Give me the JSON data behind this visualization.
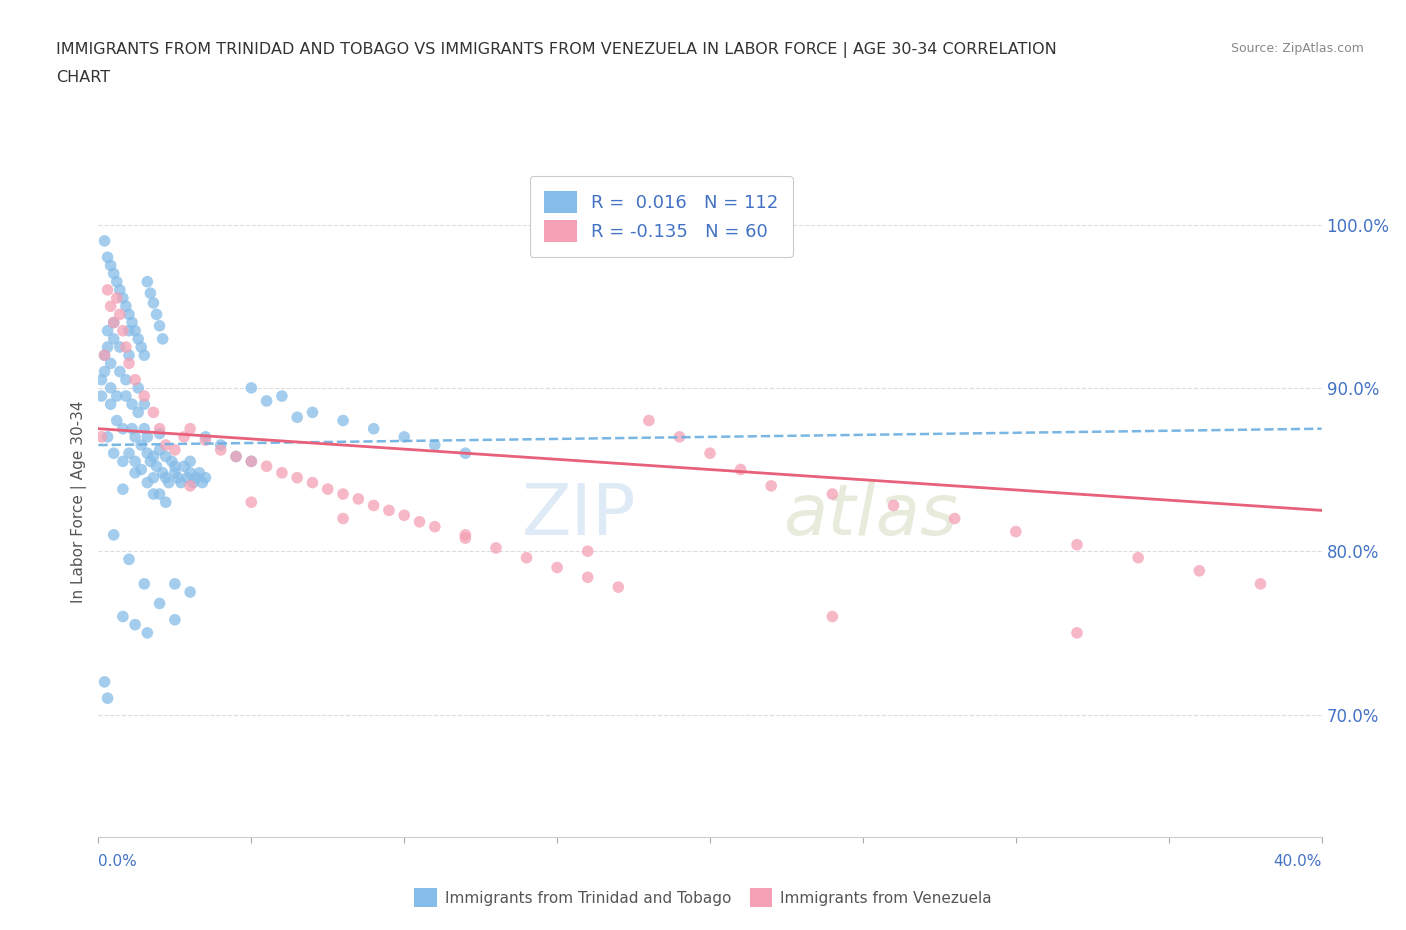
{
  "title_line1": "IMMIGRANTS FROM TRINIDAD AND TOBAGO VS IMMIGRANTS FROM VENEZUELA IN LABOR FORCE | AGE 30-34 CORRELATION",
  "title_line2": "CHART",
  "source_text": "Source: ZipAtlas.com",
  "ylabel_label": "In Labor Force | Age 30-34",
  "ytick_values": [
    0.7,
    0.8,
    0.9,
    1.0
  ],
  "xlim": [
    0.0,
    0.4
  ],
  "ylim": [
    0.625,
    1.035
  ],
  "color_tt": "#85BCE8",
  "color_ven": "#F4A0B5",
  "line_color_tt": "#6AAEE0",
  "line_color_ven": "#E8607A",
  "legend_r_tt": "0.016",
  "legend_n_tt": "112",
  "legend_r_ven": "-0.135",
  "legend_n_ven": "60",
  "watermark_zip": "ZIP",
  "watermark_atlas": "atlas",
  "tt_x": [
    0.001,
    0.001,
    0.002,
    0.002,
    0.003,
    0.003,
    0.003,
    0.004,
    0.004,
    0.004,
    0.005,
    0.005,
    0.005,
    0.006,
    0.006,
    0.007,
    0.007,
    0.008,
    0.008,
    0.009,
    0.009,
    0.01,
    0.01,
    0.01,
    0.011,
    0.011,
    0.012,
    0.012,
    0.013,
    0.013,
    0.014,
    0.014,
    0.015,
    0.015,
    0.016,
    0.016,
    0.017,
    0.018,
    0.018,
    0.019,
    0.02,
    0.02,
    0.021,
    0.022,
    0.022,
    0.023,
    0.024,
    0.025,
    0.025,
    0.026,
    0.027,
    0.028,
    0.029,
    0.03,
    0.03,
    0.031,
    0.032,
    0.033,
    0.034,
    0.035,
    0.002,
    0.003,
    0.004,
    0.005,
    0.006,
    0.007,
    0.008,
    0.009,
    0.01,
    0.011,
    0.012,
    0.013,
    0.014,
    0.015,
    0.016,
    0.017,
    0.018,
    0.019,
    0.02,
    0.021,
    0.005,
    0.01,
    0.015,
    0.02,
    0.025,
    0.008,
    0.012,
    0.016,
    0.002,
    0.003,
    0.05,
    0.06,
    0.07,
    0.08,
    0.09,
    0.1,
    0.11,
    0.12,
    0.055,
    0.065,
    0.025,
    0.03,
    0.022,
    0.018,
    0.035,
    0.04,
    0.045,
    0.05,
    0.012,
    0.016,
    0.008,
    0.02
  ],
  "tt_y": [
    0.895,
    0.905,
    0.91,
    0.92,
    0.925,
    0.935,
    0.87,
    0.89,
    0.9,
    0.915,
    0.93,
    0.94,
    0.86,
    0.88,
    0.895,
    0.91,
    0.925,
    0.855,
    0.875,
    0.895,
    0.905,
    0.92,
    0.935,
    0.86,
    0.875,
    0.89,
    0.855,
    0.87,
    0.885,
    0.9,
    0.85,
    0.865,
    0.875,
    0.89,
    0.86,
    0.87,
    0.855,
    0.845,
    0.858,
    0.852,
    0.862,
    0.872,
    0.848,
    0.845,
    0.858,
    0.842,
    0.855,
    0.852,
    0.848,
    0.845,
    0.842,
    0.852,
    0.845,
    0.848,
    0.855,
    0.842,
    0.845,
    0.848,
    0.842,
    0.845,
    0.99,
    0.98,
    0.975,
    0.97,
    0.965,
    0.96,
    0.955,
    0.95,
    0.945,
    0.94,
    0.935,
    0.93,
    0.925,
    0.92,
    0.965,
    0.958,
    0.952,
    0.945,
    0.938,
    0.93,
    0.81,
    0.795,
    0.78,
    0.768,
    0.758,
    0.76,
    0.755,
    0.75,
    0.72,
    0.71,
    0.9,
    0.895,
    0.885,
    0.88,
    0.875,
    0.87,
    0.865,
    0.86,
    0.892,
    0.882,
    0.78,
    0.775,
    0.83,
    0.835,
    0.87,
    0.865,
    0.858,
    0.855,
    0.848,
    0.842,
    0.838,
    0.835
  ],
  "ven_x": [
    0.001,
    0.002,
    0.003,
    0.004,
    0.005,
    0.006,
    0.007,
    0.008,
    0.009,
    0.01,
    0.012,
    0.015,
    0.018,
    0.02,
    0.022,
    0.025,
    0.028,
    0.03,
    0.035,
    0.04,
    0.045,
    0.05,
    0.055,
    0.06,
    0.065,
    0.07,
    0.075,
    0.08,
    0.085,
    0.09,
    0.095,
    0.1,
    0.105,
    0.11,
    0.12,
    0.13,
    0.14,
    0.15,
    0.16,
    0.17,
    0.18,
    0.19,
    0.2,
    0.21,
    0.22,
    0.24,
    0.26,
    0.28,
    0.3,
    0.32,
    0.34,
    0.36,
    0.38,
    0.03,
    0.05,
    0.08,
    0.12,
    0.16,
    0.24,
    0.32
  ],
  "ven_y": [
    0.87,
    0.92,
    0.96,
    0.95,
    0.94,
    0.955,
    0.945,
    0.935,
    0.925,
    0.915,
    0.905,
    0.895,
    0.885,
    0.875,
    0.865,
    0.862,
    0.87,
    0.875,
    0.868,
    0.862,
    0.858,
    0.855,
    0.852,
    0.848,
    0.845,
    0.842,
    0.838,
    0.835,
    0.832,
    0.828,
    0.825,
    0.822,
    0.818,
    0.815,
    0.808,
    0.802,
    0.796,
    0.79,
    0.784,
    0.778,
    0.88,
    0.87,
    0.86,
    0.85,
    0.84,
    0.835,
    0.828,
    0.82,
    0.812,
    0.804,
    0.796,
    0.788,
    0.78,
    0.84,
    0.83,
    0.82,
    0.81,
    0.8,
    0.76,
    0.75
  ]
}
